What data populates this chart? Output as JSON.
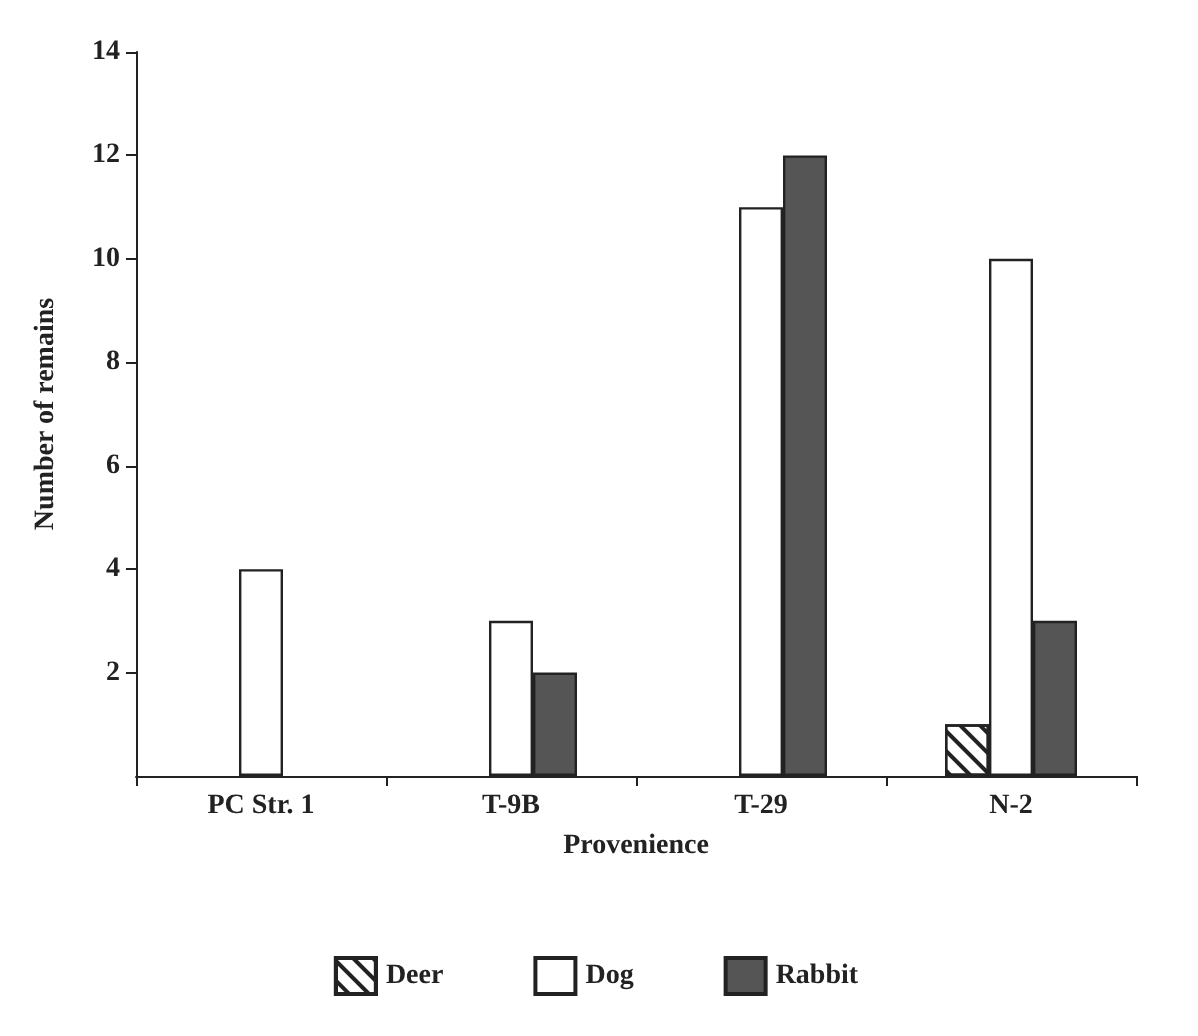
{
  "chart_data": {
    "type": "bar",
    "xlabel": "Provenience",
    "ylabel": "Number of remains",
    "categories": [
      "PC Str. 1",
      "T-9B",
      "T-29",
      "N-2"
    ],
    "series": [
      {
        "name": "Deer",
        "color": "#ffffff",
        "values": [
          0,
          0,
          0,
          1
        ]
      },
      {
        "name": "Dog",
        "color": "#ffffff",
        "values": [
          4,
          3,
          11,
          10
        ]
      },
      {
        "name": "Rabbit",
        "color": "#555555",
        "values": [
          0,
          2,
          12,
          3
        ]
      }
    ],
    "ylim": [
      0,
      14
    ],
    "yticks": [
      2,
      4,
      6,
      8,
      10,
      12,
      14
    ],
    "grid": false,
    "legend": "bottom"
  }
}
